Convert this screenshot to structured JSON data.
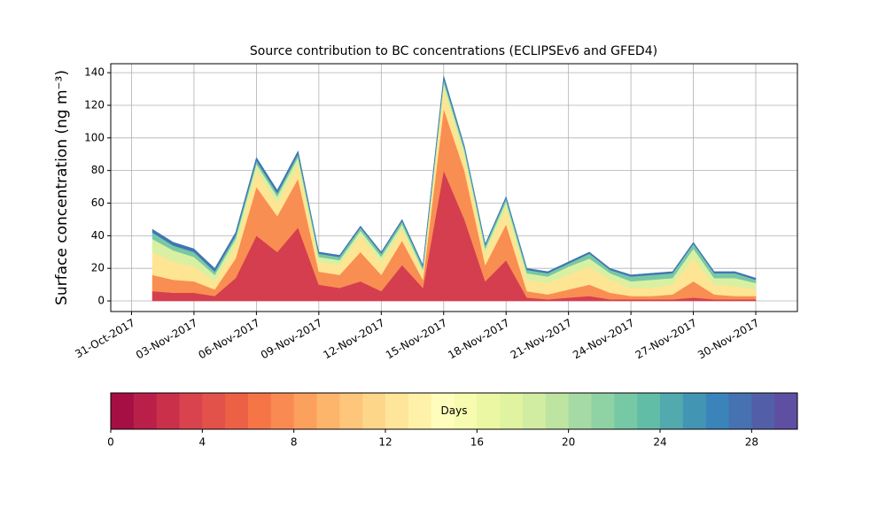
{
  "chart_data": {
    "type": "stacked_area",
    "title": "Source contribution to BC concentrations (ECLIPSEv6 and GFED4)",
    "ylabel": "Surface concentration (ng m⁻³)",
    "x": [
      "01-Nov-2017",
      "02-Nov-2017",
      "03-Nov-2017",
      "04-Nov-2017",
      "05-Nov-2017",
      "06-Nov-2017",
      "07-Nov-2017",
      "08-Nov-2017",
      "09-Nov-2017",
      "10-Nov-2017",
      "11-Nov-2017",
      "12-Nov-2017",
      "13-Nov-2017",
      "14-Nov-2017",
      "15-Nov-2017",
      "16-Nov-2017",
      "17-Nov-2017",
      "18-Nov-2017",
      "19-Nov-2017",
      "20-Nov-2017",
      "21-Nov-2017",
      "22-Nov-2017",
      "23-Nov-2017",
      "24-Nov-2017",
      "25-Nov-2017",
      "26-Nov-2017",
      "27-Nov-2017",
      "28-Nov-2017",
      "29-Nov-2017",
      "30-Nov-2017"
    ],
    "series": [
      {
        "color": "#d53e4f",
        "values": [
          6,
          5,
          5,
          3,
          14,
          40,
          30,
          45,
          10,
          8,
          12,
          6,
          22,
          8,
          80,
          50,
          12,
          25,
          2,
          1,
          2,
          3,
          1,
          1,
          1,
          1,
          2,
          1,
          1,
          1
        ]
      },
      {
        "color": "#f98e52",
        "values": [
          10,
          8,
          7,
          4,
          12,
          30,
          22,
          30,
          8,
          8,
          18,
          10,
          15,
          5,
          38,
          30,
          10,
          22,
          4,
          3,
          5,
          7,
          4,
          2,
          2,
          3,
          10,
          3,
          2,
          2
        ]
      },
      {
        "color": "#fee593",
        "values": [
          14,
          11,
          9,
          5,
          8,
          10,
          8,
          9,
          6,
          6,
          10,
          8,
          7,
          4,
          12,
          9,
          7,
          10,
          7,
          7,
          9,
          11,
          8,
          5,
          5,
          6,
          14,
          6,
          6,
          4
        ]
      },
      {
        "color": "#d9f0a2",
        "values": [
          8,
          7,
          6,
          4,
          4,
          4,
          4,
          4,
          3,
          3,
          3,
          3,
          3,
          2,
          4,
          3,
          3,
          4,
          4,
          4,
          5,
          5,
          4,
          4,
          5,
          4,
          6,
          4,
          5,
          4
        ]
      },
      {
        "color": "#77c8a5",
        "values": [
          4,
          3,
          3,
          2,
          2,
          2,
          2,
          2,
          2,
          2,
          2,
          2,
          2,
          2,
          2,
          2,
          2,
          2,
          2,
          2,
          2,
          3,
          2,
          3,
          3,
          3,
          3,
          3,
          3,
          2
        ]
      },
      {
        "color": "#4075b4",
        "values": [
          2,
          2,
          2,
          2,
          2,
          2,
          2,
          2,
          1,
          1,
          1,
          1,
          1,
          1,
          2,
          1,
          1,
          1,
          1,
          1,
          1,
          1,
          1,
          1,
          1,
          1,
          1,
          1,
          1,
          1
        ]
      }
    ],
    "xlim": [
      "30-Oct-2017",
      "02-Dec-2017"
    ],
    "xticks": [
      "31-Oct-2017",
      "03-Nov-2017",
      "06-Nov-2017",
      "09-Nov-2017",
      "12-Nov-2017",
      "15-Nov-2017",
      "18-Nov-2017",
      "21-Nov-2017",
      "24-Nov-2017",
      "27-Nov-2017",
      "30-Nov-2017"
    ],
    "ylim": [
      -6.5,
      145.5
    ],
    "yticks": [
      0,
      20,
      40,
      60,
      80,
      100,
      120,
      140
    ],
    "grid": true,
    "colorbar": {
      "label": "Days",
      "lim": [
        0,
        30
      ],
      "ticks": [
        0,
        4,
        8,
        12,
        16,
        20,
        24,
        28
      ],
      "colors": [
        "#a50f44",
        "#b91f48",
        "#ca304a",
        "#d8434e",
        "#e2524a",
        "#ec6145",
        "#f57547",
        "#f98b52",
        "#fca05d",
        "#fdb46b",
        "#fec67a",
        "#fed68a",
        "#fee599",
        "#fff1a8",
        "#fffdbc",
        "#f6fbb0",
        "#ebf7a2",
        "#e0f3a1",
        "#d0eda1",
        "#bde4a0",
        "#a6daa4",
        "#8fd2a4",
        "#77c8a5",
        "#62bda7",
        "#52a9ae",
        "#4396b3",
        "#3a84bb",
        "#4672b1",
        "#525fa8",
        "#5e4fa2"
      ]
    }
  }
}
